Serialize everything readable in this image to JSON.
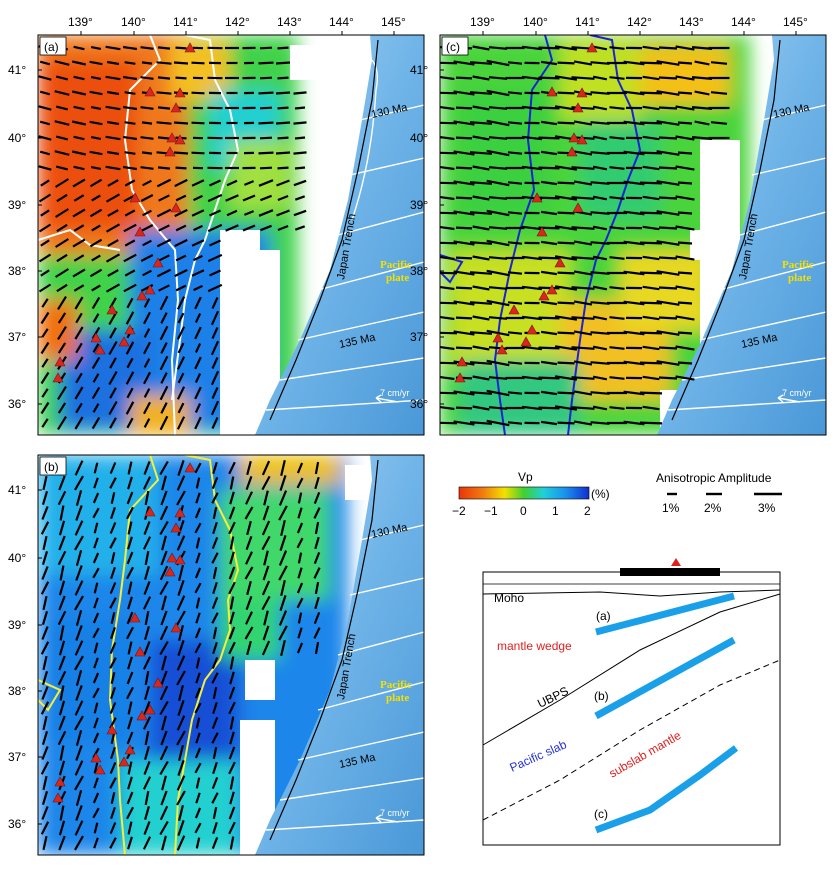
{
  "panels": [
    {
      "id": "a",
      "label": "(a)",
      "coast_color": "#ffffff"
    },
    {
      "id": "b",
      "label": "(b)",
      "coast_color": "#f5ef3a"
    },
    {
      "id": "c",
      "label": "(c)",
      "coast_color": "#1a23d6"
    }
  ],
  "lon_ticks": [
    "139°",
    "140°",
    "141°",
    "142°",
    "143°",
    "144°",
    "145°"
  ],
  "lat_ticks_top": [
    "41°",
    "40°",
    "39°",
    "38°",
    "37°",
    "36°"
  ],
  "lat_ticks_bottom": [
    "41°",
    "40°",
    "39°",
    "38°",
    "37°",
    "36°"
  ],
  "map_labels": {
    "trench": "Japan Trench",
    "plate_line1": "Pacific",
    "plate_line2": "plate",
    "age_130": "130 Ma",
    "age_135": "135 Ma",
    "velocity": "7 cm/yr"
  },
  "colorbar": {
    "title": "Vp",
    "unit": "(%)",
    "ticks": [
      "−2",
      "−1",
      "0",
      "1",
      "2"
    ]
  },
  "anisotropy_legend": {
    "title": "Anisotropic Amplitude",
    "items": [
      "1%",
      "2%",
      "3%"
    ]
  },
  "cross_section": {
    "moho": "Moho",
    "mantle_wedge": "mantle wedge",
    "ubps": "UBPS",
    "pacific_slab": "Pacific slab",
    "subslab_mantle": "subslab mantle",
    "layer_a": "(a)",
    "layer_b": "(b)",
    "layer_c": "(c)"
  },
  "colors": {
    "land_red": "#d8281e",
    "text_red": "#e02020",
    "text_blue": "#2230d8",
    "fast_bar": "#1aa0e8",
    "plate_text": "#f5e000",
    "ocean": "#6fb4e8"
  }
}
